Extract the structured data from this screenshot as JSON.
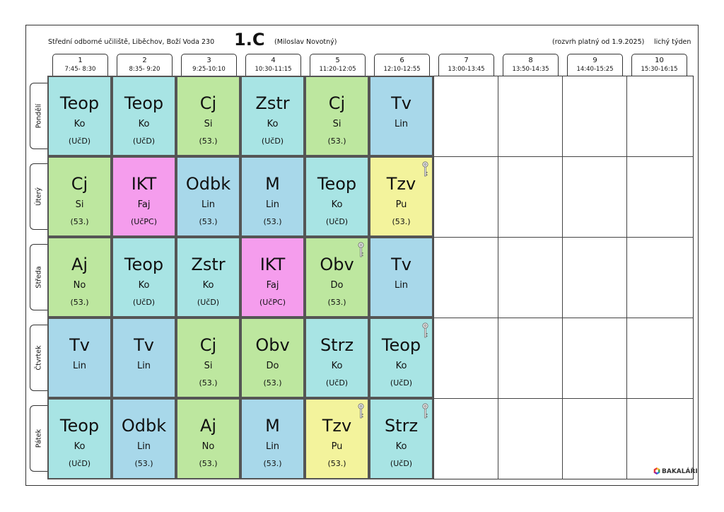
{
  "header": {
    "school": "Střední odborné učiliště, Liběchov, Boží Voda 230",
    "class_name": "1.C",
    "teacher": "(Miloslav Novotný)",
    "validity": "(rozvrh platný od 1.9.2025)",
    "week": "lichý týden"
  },
  "periods": [
    {
      "num": "1",
      "time": "7:45- 8:30"
    },
    {
      "num": "2",
      "time": "8:35- 9:20"
    },
    {
      "num": "3",
      "time": "9:25-10:10"
    },
    {
      "num": "4",
      "time": "10:30-11:15"
    },
    {
      "num": "5",
      "time": "11:20-12:05"
    },
    {
      "num": "6",
      "time": "12:10-12:55"
    },
    {
      "num": "7",
      "time": "13:00-13:45"
    },
    {
      "num": "8",
      "time": "13:50-14:35"
    },
    {
      "num": "9",
      "time": "14:40-15:25"
    },
    {
      "num": "10",
      "time": "15:30-16:15"
    }
  ],
  "days": [
    {
      "name": "Pondělí",
      "lessons": [
        {
          "subject": "Teop",
          "teacher": "Ko",
          "room": "(UčD)",
          "color": "#a8e4e4",
          "key": false
        },
        {
          "subject": "Teop",
          "teacher": "Ko",
          "room": "(UčD)",
          "color": "#a8e4e4",
          "key": false
        },
        {
          "subject": "Cj",
          "teacher": "Si",
          "room": "(53.)",
          "color": "#bde79f",
          "key": false
        },
        {
          "subject": "Zstr",
          "teacher": "Ko",
          "room": "(UčD)",
          "color": "#a8e4e4",
          "key": false
        },
        {
          "subject": "Cj",
          "teacher": "Si",
          "room": "(53.)",
          "color": "#bde79f",
          "key": false
        },
        {
          "subject": "Tv",
          "teacher": "Lin",
          "room": "",
          "color": "#a8d8ea",
          "key": false
        }
      ]
    },
    {
      "name": "Úterý",
      "lessons": [
        {
          "subject": "Cj",
          "teacher": "Si",
          "room": "(53.)",
          "color": "#bde79f",
          "key": false
        },
        {
          "subject": "IKT",
          "teacher": "Faj",
          "room": "(UčPC)",
          "color": "#f59ded",
          "key": false
        },
        {
          "subject": "Odbk",
          "teacher": "Lin",
          "room": "(53.)",
          "color": "#a8d8ea",
          "key": false
        },
        {
          "subject": "M",
          "teacher": "Lin",
          "room": "(53.)",
          "color": "#a8d8ea",
          "key": false
        },
        {
          "subject": "Teop",
          "teacher": "Ko",
          "room": "(UčD)",
          "color": "#a8e4e4",
          "key": false
        },
        {
          "subject": "Tzv",
          "teacher": "Pu",
          "room": "(53.)",
          "color": "#f3f39c",
          "key": true
        }
      ]
    },
    {
      "name": "Středa",
      "lessons": [
        {
          "subject": "Aj",
          "teacher": "No",
          "room": "(53.)",
          "color": "#bde79f",
          "key": false
        },
        {
          "subject": "Teop",
          "teacher": "Ko",
          "room": "(UčD)",
          "color": "#a8e4e4",
          "key": false
        },
        {
          "subject": "Zstr",
          "teacher": "Ko",
          "room": "(UčD)",
          "color": "#a8e4e4",
          "key": false
        },
        {
          "subject": "IKT",
          "teacher": "Faj",
          "room": "(UčPC)",
          "color": "#f59ded",
          "key": false
        },
        {
          "subject": "Obv",
          "teacher": "Do",
          "room": "(53.)",
          "color": "#bde79f",
          "key": true
        },
        {
          "subject": "Tv",
          "teacher": "Lin",
          "room": "",
          "color": "#a8d8ea",
          "key": false
        }
      ]
    },
    {
      "name": "Čtvrtek",
      "lessons": [
        {
          "subject": "Tv",
          "teacher": "Lin",
          "room": "",
          "color": "#a8d8ea",
          "key": false
        },
        {
          "subject": "Tv",
          "teacher": "Lin",
          "room": "",
          "color": "#a8d8ea",
          "key": false
        },
        {
          "subject": "Cj",
          "teacher": "Si",
          "room": "(53.)",
          "color": "#bde79f",
          "key": false
        },
        {
          "subject": "Obv",
          "teacher": "Do",
          "room": "(53.)",
          "color": "#bde79f",
          "key": false
        },
        {
          "subject": "Strz",
          "teacher": "Ko",
          "room": "(UčD)",
          "color": "#a8e4e4",
          "key": false
        },
        {
          "subject": "Teop",
          "teacher": "Ko",
          "room": "(UčD)",
          "color": "#a8e4e4",
          "key": true
        }
      ]
    },
    {
      "name": "Pátek",
      "lessons": [
        {
          "subject": "Teop",
          "teacher": "Ko",
          "room": "(UčD)",
          "color": "#a8e4e4",
          "key": false
        },
        {
          "subject": "Odbk",
          "teacher": "Lin",
          "room": "(53.)",
          "color": "#a8d8ea",
          "key": false
        },
        {
          "subject": "Aj",
          "teacher": "No",
          "room": "(53.)",
          "color": "#bde79f",
          "key": false
        },
        {
          "subject": "M",
          "teacher": "Lin",
          "room": "(53.)",
          "color": "#a8d8ea",
          "key": false
        },
        {
          "subject": "Tzv",
          "teacher": "Pu",
          "room": "(53.)",
          "color": "#f3f39c",
          "key": true
        },
        {
          "subject": "Strz",
          "teacher": "Ko",
          "room": "(UčD)",
          "color": "#a8e4e4",
          "key": true
        }
      ]
    }
  ],
  "icons": {
    "key": "key-icon",
    "logo": "bakalari-logo-icon"
  },
  "footer": {
    "brand": "BAKALÁŘI"
  }
}
